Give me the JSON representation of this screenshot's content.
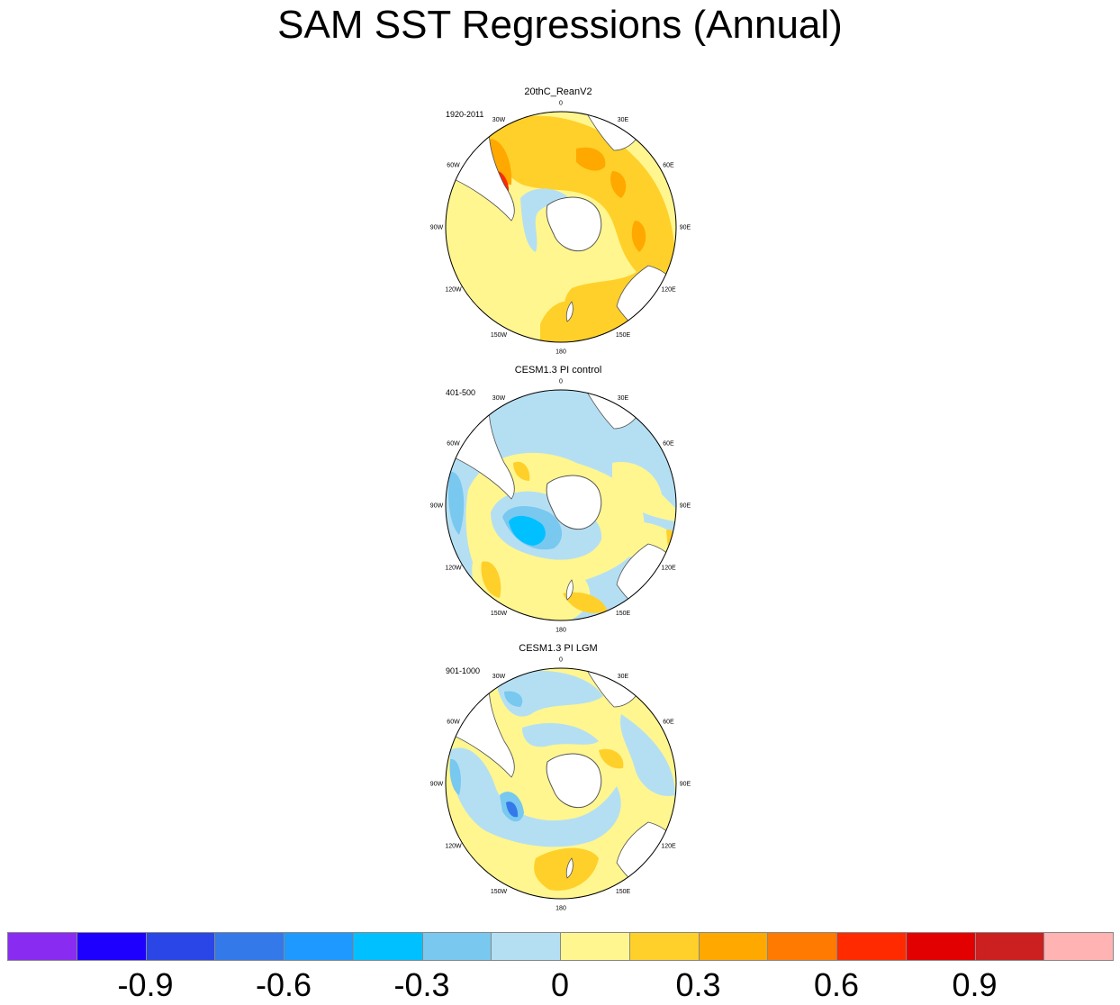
{
  "title": "SAM SST Regressions (Annual)",
  "palette": {
    "land": "#ffffff",
    "coast": "#555555",
    "lightblue": "#b4dff3",
    "blue1": "#78c8f0",
    "blue2": "#00c0ff",
    "yellow": "#fff68f",
    "gold": "#ffd02a",
    "orange": "#ffa800",
    "darkorange": "#ff7a00",
    "red": "#ff2a00"
  },
  "longitude_labels": [
    "0",
    "30E",
    "60E",
    "90E",
    "120E",
    "150E",
    "180",
    "150W",
    "120W",
    "90W",
    "60W",
    "30W"
  ],
  "panels": [
    {
      "title": "20thC_ReanV2",
      "period": "1920-2011",
      "background": "#fff68f"
    },
    {
      "title": "CESM1.3 PI control",
      "period": "401-500",
      "background": "#b4dff3"
    },
    {
      "title": "CESM1.3 PI LGM",
      "period": "901-1000",
      "background": "#fff68f"
    }
  ],
  "colorbar": {
    "colors": [
      "#8a2bf2",
      "#1e00ff",
      "#2a46e6",
      "#3379ea",
      "#1e99ff",
      "#00c0ff",
      "#78c8f0",
      "#b4dff3",
      "#fff68f",
      "#ffd02a",
      "#ffa800",
      "#ff7a00",
      "#ff2a00",
      "#e30000",
      "#cc1f1f",
      "#ffb3b3"
    ],
    "tick_labels": [
      "-0.9",
      "-0.6",
      "-0.3",
      "0",
      "0.3",
      "0.6",
      "0.9"
    ],
    "tick_values": [
      -0.9,
      -0.6,
      -0.3,
      0,
      0.3,
      0.6,
      0.9
    ],
    "levels": [
      -1.05,
      -0.9,
      -0.75,
      -0.6,
      -0.45,
      -0.3,
      -0.15,
      0,
      0.15,
      0.3,
      0.45,
      0.6,
      0.75,
      0.9,
      1.05
    ]
  }
}
